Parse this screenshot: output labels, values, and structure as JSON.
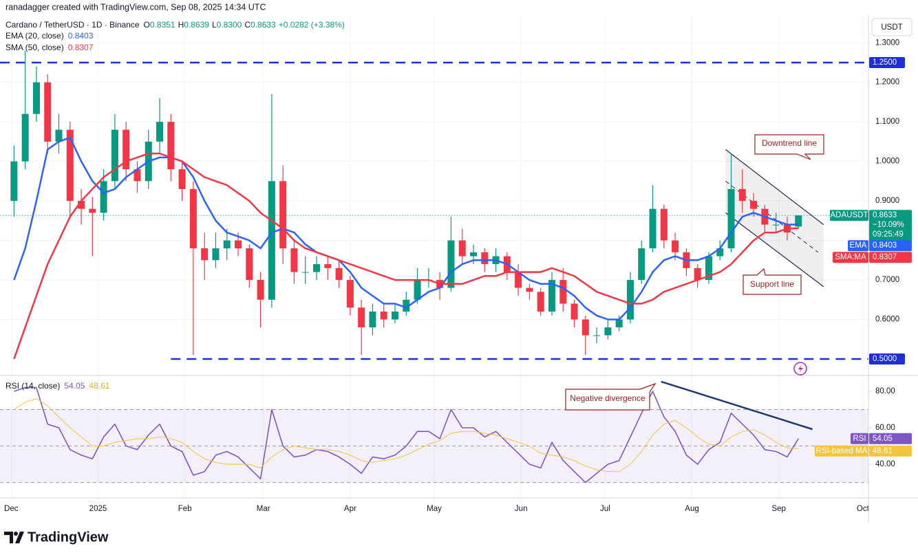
{
  "header": {
    "credit": "ranadagger created with TradingView.com, Sep 08, 2025 14:34 UTC",
    "symbol": "Cardano / TetherUSD · 1D · Binance",
    "ohlc": [
      {
        "label": "O",
        "value": "0.8351"
      },
      {
        "label": "H",
        "value": "0.8639"
      },
      {
        "label": "L",
        "value": "0.8300"
      },
      {
        "label": "C",
        "value": "0.8633"
      }
    ],
    "change": "+0.0282 (+3.38%)",
    "ema_legend": {
      "label": "EMA (20, close)",
      "value": "0.8403"
    },
    "sma_legend": {
      "label": "SMA (50, close)",
      "value": "0.8307"
    },
    "rsi_legend": {
      "label": "RSI (14, close)",
      "values": [
        "54.05",
        "48.61"
      ]
    },
    "currency": "USDT"
  },
  "annotations": {
    "downtrend": "Downtrend line",
    "support": "Support line",
    "divergence": "Negative divergence"
  },
  "footer": {
    "brand": "TradingView"
  },
  "chart_data": [
    {
      "type": "candlestick",
      "up_color": "#089981",
      "down_color": "#f23645",
      "grid": true,
      "x": [
        1,
        5,
        9,
        13,
        17,
        21,
        25,
        29,
        33,
        37,
        41,
        45,
        49,
        53,
        57,
        61,
        65,
        69,
        73,
        77,
        81,
        85,
        89,
        93,
        97,
        101,
        105,
        109,
        113,
        117,
        121,
        125,
        129,
        133,
        137,
        141,
        145,
        149,
        153,
        157,
        161,
        165,
        169,
        173,
        177,
        181,
        185,
        189,
        193,
        197,
        201,
        205,
        209,
        213,
        217,
        221,
        225,
        229,
        233,
        237,
        241,
        245,
        249,
        253,
        257,
        261,
        265,
        269,
        273,
        277,
        281
      ],
      "open": [
        0.9,
        1.0,
        1.12,
        1.2,
        1.05,
        1.08,
        0.9,
        0.88,
        0.87,
        0.95,
        1.08,
        0.98,
        0.95,
        1.05,
        1.1,
        0.98,
        0.93,
        0.78,
        0.75,
        0.78,
        0.8,
        0.78,
        0.7,
        0.65,
        0.95,
        0.78,
        0.72,
        0.72,
        0.74,
        0.73,
        0.7,
        0.63,
        0.58,
        0.62,
        0.6,
        0.62,
        0.65,
        0.7,
        0.7,
        0.68,
        0.8,
        0.76,
        0.77,
        0.74,
        0.76,
        0.72,
        0.68,
        0.67,
        0.62,
        0.7,
        0.64,
        0.6,
        0.56,
        0.56,
        0.58,
        0.6,
        0.7,
        0.78,
        0.88,
        0.8,
        0.77,
        0.73,
        0.7,
        0.76,
        0.78,
        0.93,
        0.9,
        0.88,
        0.84,
        0.84,
        0.8351
      ],
      "high": [
        1.04,
        1.28,
        1.24,
        1.22,
        1.12,
        1.1,
        0.93,
        0.91,
        0.98,
        1.12,
        1.1,
        1.0,
        1.08,
        1.16,
        1.12,
        1.0,
        0.95,
        0.82,
        0.82,
        0.83,
        0.82,
        0.79,
        0.72,
        1.17,
        0.99,
        0.8,
        0.76,
        0.76,
        0.76,
        0.75,
        0.71,
        0.65,
        0.64,
        0.64,
        0.64,
        0.67,
        0.73,
        0.73,
        0.72,
        0.86,
        0.83,
        0.79,
        0.78,
        0.78,
        0.77,
        0.74,
        0.69,
        0.68,
        0.72,
        0.73,
        0.65,
        0.61,
        0.58,
        0.6,
        0.61,
        0.72,
        0.8,
        0.94,
        0.89,
        0.82,
        0.78,
        0.74,
        0.77,
        0.8,
        1.02,
        0.98,
        0.92,
        0.89,
        0.87,
        0.86,
        0.8639
      ],
      "low": [
        0.86,
        0.98,
        1.1,
        1.02,
        1.02,
        0.86,
        0.84,
        0.76,
        0.85,
        0.93,
        0.95,
        0.92,
        0.93,
        1.02,
        0.95,
        0.9,
        0.51,
        0.7,
        0.73,
        0.75,
        0.76,
        0.68,
        0.58,
        0.63,
        0.74,
        0.69,
        0.69,
        0.7,
        0.7,
        0.68,
        0.61,
        0.51,
        0.56,
        0.58,
        0.59,
        0.61,
        0.64,
        0.68,
        0.65,
        0.67,
        0.74,
        0.74,
        0.72,
        0.72,
        0.7,
        0.66,
        0.65,
        0.61,
        0.61,
        0.62,
        0.58,
        0.51,
        0.54,
        0.55,
        0.57,
        0.59,
        0.69,
        0.77,
        0.78,
        0.75,
        0.71,
        0.68,
        0.69,
        0.75,
        0.77,
        0.87,
        0.86,
        0.82,
        0.82,
        0.8,
        0.83
      ],
      "close": [
        1.0,
        1.12,
        1.2,
        1.05,
        1.08,
        0.9,
        0.88,
        0.87,
        0.95,
        1.08,
        0.98,
        0.95,
        1.05,
        1.1,
        0.98,
        0.93,
        0.78,
        0.75,
        0.78,
        0.8,
        0.78,
        0.7,
        0.65,
        0.95,
        0.78,
        0.72,
        0.72,
        0.74,
        0.73,
        0.7,
        0.63,
        0.58,
        0.62,
        0.6,
        0.62,
        0.65,
        0.7,
        0.7,
        0.68,
        0.8,
        0.76,
        0.77,
        0.74,
        0.76,
        0.72,
        0.68,
        0.67,
        0.62,
        0.7,
        0.64,
        0.6,
        0.56,
        0.56,
        0.58,
        0.6,
        0.7,
        0.78,
        0.88,
        0.8,
        0.77,
        0.73,
        0.7,
        0.76,
        0.78,
        0.93,
        0.9,
        0.88,
        0.84,
        0.84,
        0.82,
        0.8633
      ],
      "series": [
        {
          "name": "EMA",
          "color": "#2962ff",
          "values": [
            0.7,
            0.78,
            0.9,
            1.03,
            1.05,
            1.06,
            1.0,
            0.95,
            0.92,
            0.93,
            0.96,
            0.98,
            1.0,
            1.01,
            1.01,
            1.0,
            0.96,
            0.9,
            0.85,
            0.82,
            0.81,
            0.8,
            0.78,
            0.82,
            0.83,
            0.82,
            0.79,
            0.77,
            0.76,
            0.75,
            0.72,
            0.68,
            0.66,
            0.64,
            0.64,
            0.63,
            0.65,
            0.67,
            0.68,
            0.72,
            0.74,
            0.75,
            0.75,
            0.75,
            0.74,
            0.72,
            0.7,
            0.69,
            0.69,
            0.68,
            0.66,
            0.63,
            0.61,
            0.6,
            0.6,
            0.63,
            0.67,
            0.72,
            0.75,
            0.76,
            0.75,
            0.75,
            0.76,
            0.78,
            0.82,
            0.86,
            0.87,
            0.86,
            0.85,
            0.84,
            0.8403
          ],
          "tag_label": "0.8403"
        },
        {
          "name": "SMA:MA",
          "color": "#f23645",
          "values": [
            0.5,
            0.58,
            0.66,
            0.74,
            0.8,
            0.86,
            0.9,
            0.93,
            0.96,
            0.98,
            1.0,
            1.01,
            1.02,
            1.02,
            1.01,
            1.0,
            0.98,
            0.96,
            0.95,
            0.94,
            0.92,
            0.9,
            0.87,
            0.85,
            0.83,
            0.8,
            0.78,
            0.77,
            0.76,
            0.75,
            0.74,
            0.73,
            0.72,
            0.71,
            0.7,
            0.7,
            0.7,
            0.7,
            0.69,
            0.69,
            0.69,
            0.7,
            0.71,
            0.71,
            0.72,
            0.72,
            0.72,
            0.72,
            0.73,
            0.72,
            0.71,
            0.69,
            0.67,
            0.66,
            0.65,
            0.64,
            0.64,
            0.65,
            0.67,
            0.68,
            0.69,
            0.7,
            0.71,
            0.72,
            0.74,
            0.77,
            0.8,
            0.82,
            0.82,
            0.83,
            0.8307
          ],
          "tag_label": "0.8307"
        }
      ],
      "last_tag": {
        "name": "ADAUSDT",
        "lines": [
          "0.8633",
          "−10.09%",
          "09:25:49"
        ]
      },
      "levels": [
        {
          "value": 1.25,
          "label": "1.2500",
          "start": -4
        },
        {
          "value": 0.5,
          "label": "0.5000",
          "start": 57
        }
      ],
      "level_color": "#1e2fd6",
      "trendlines": [
        {
          "x": [
            255,
            290
          ],
          "y": [
            1.03,
            0.84
          ],
          "dashed": false
        },
        {
          "x": [
            255,
            290
          ],
          "y": [
            0.87,
            0.683
          ],
          "dashed": false
        },
        {
          "x": [
            255,
            288
          ],
          "y": [
            0.95,
            0.77
          ],
          "dashed": true
        }
      ],
      "xlim": [
        -4,
        306
      ],
      "xticks": [
        {
          "value": 0,
          "label": "Dec"
        },
        {
          "value": 31,
          "label": "2025"
        },
        {
          "value": 62,
          "label": "Feb"
        },
        {
          "value": 90,
          "label": "Mar"
        },
        {
          "value": 121,
          "label": "Apr"
        },
        {
          "value": 151,
          "label": "May"
        },
        {
          "value": 182,
          "label": "Jun"
        },
        {
          "value": 212,
          "label": "Jul"
        },
        {
          "value": 243,
          "label": "Aug"
        },
        {
          "value": 274,
          "label": "Sep"
        },
        {
          "value": 304,
          "label": "Oct"
        }
      ],
      "ylim": [
        0.46,
        1.37
      ],
      "yticks": [
        {
          "value": 0.6,
          "label": "0.6000"
        },
        {
          "value": 0.7,
          "label": "0.7000"
        },
        {
          "value": 0.8,
          "label": "0.8000"
        },
        {
          "value": 0.9,
          "label": "0.9000"
        },
        {
          "value": 1.0,
          "label": "1.0000"
        },
        {
          "value": 1.1,
          "label": "1.1000"
        },
        {
          "value": 1.2,
          "label": "1.2000"
        },
        {
          "value": 1.3,
          "label": "1.3000"
        }
      ]
    },
    {
      "type": "line",
      "series": [
        {
          "name": "RSI",
          "color": "#7e57c2",
          "values": [
            80,
            82,
            82,
            62,
            60,
            48,
            45,
            43,
            55,
            62,
            50,
            48,
            56,
            62,
            50,
            47,
            34,
            36,
            45,
            47,
            44,
            38,
            32,
            70,
            50,
            44,
            45,
            48,
            47,
            44,
            40,
            35,
            44,
            43,
            45,
            50,
            58,
            58,
            54,
            70,
            60,
            60,
            55,
            58,
            52,
            46,
            40,
            38,
            52,
            42,
            36,
            30,
            35,
            40,
            42,
            55,
            68,
            80,
            66,
            58,
            45,
            40,
            48,
            52,
            68,
            62,
            56,
            48,
            47,
            44,
            54.05
          ],
          "tag_label": "54.05"
        },
        {
          "name": "RSI-based MA",
          "color": "#f2c53d",
          "values": [
            70,
            74,
            76,
            72,
            66,
            60,
            55,
            50,
            50,
            52,
            53,
            54,
            54,
            55,
            54,
            52,
            47,
            43,
            41,
            40,
            40,
            40,
            38,
            44,
            48,
            50,
            49,
            48,
            48,
            47,
            45,
            42,
            41,
            42,
            43,
            45,
            48,
            51,
            53,
            57,
            58,
            58,
            57,
            56,
            54,
            52,
            50,
            46,
            45,
            44,
            42,
            39,
            37,
            36,
            36,
            40,
            47,
            56,
            62,
            64,
            60,
            55,
            51,
            50,
            55,
            58,
            59,
            56,
            52,
            49,
            48.61
          ],
          "tag_label": "48.61"
        }
      ],
      "bands": {
        "upper": 70,
        "middle": 50,
        "lower": 30
      },
      "trendline": {
        "x": [
          232,
          286
        ],
        "y": [
          85.3,
          59.2
        ]
      },
      "ylim": [
        22.3,
        87.9
      ],
      "yticks": [
        {
          "value": 40,
          "label": "40.00"
        },
        {
          "value": 60,
          "label": "60.00"
        },
        {
          "value": 80,
          "label": "80.00"
        }
      ]
    }
  ]
}
